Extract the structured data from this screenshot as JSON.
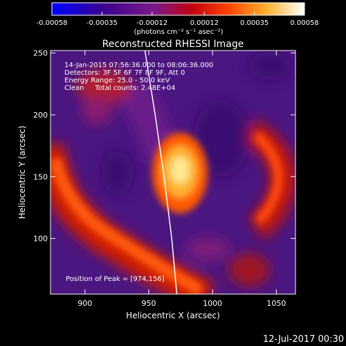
{
  "chart_data": {
    "type": "heatmap",
    "title": "Reconstructed RHESSI Image",
    "xlabel": "Heliocentric X (arcsec)",
    "ylabel": "Heliocentric Y (arcsec)",
    "xlim": [
      873,
      1065
    ],
    "ylim": [
      55,
      252
    ],
    "x_ticks": [
      900,
      950,
      1000,
      1050
    ],
    "y_ticks": [
      100,
      150,
      200,
      250
    ],
    "colorbar": {
      "min": -0.00058,
      "max": 0.00058,
      "ticks": [
        "-0.00058",
        "-0.00035",
        "-0.00012",
        "0.00012",
        "0.00035",
        "0.00058"
      ],
      "unit_label": "(photons cm⁻² s⁻¹ asec⁻²)",
      "colormap": [
        "#0000ff",
        "#4b0082",
        "#8b008b",
        "#cc0000",
        "#ff6600",
        "#ffd24d",
        "#ffffff"
      ]
    },
    "annotations": [
      "14-Jan-2015 07:56:36.000 to 08:06:36.000",
      "Detectors: 3F 5F 6F 7F 8F 9F, Att 0",
      "Energy Range: 25.0 - 50.0 keV",
      "Clean     Total counts: 2.48E+04"
    ],
    "peak_label": "Position of Peak = [974,156]",
    "peak": [
      974,
      156
    ],
    "limb_curve": [
      [
        947,
        252
      ],
      [
        955,
        200
      ],
      [
        962,
        150
      ],
      [
        968,
        100
      ],
      [
        972,
        55
      ]
    ]
  },
  "footer": {
    "date": "12-Jul-2017 00:30"
  }
}
